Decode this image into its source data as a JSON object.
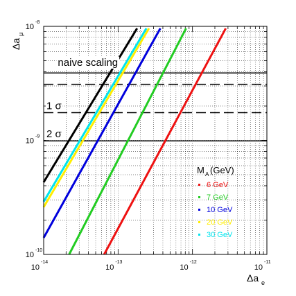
{
  "chart_data": {
    "type": "line",
    "xlabel": {
      "main": "Δa",
      "sub": "e"
    },
    "ylabel": {
      "main": "Δa",
      "sub": "μ"
    },
    "xscale": "log",
    "yscale": "log",
    "xlim": [
      1e-14,
      1e-11
    ],
    "ylim": [
      1e-10,
      1e-08
    ],
    "grid": true,
    "x_ticks": [
      {
        "base": "10",
        "exp": "-14",
        "value": 1e-14
      },
      {
        "base": "10",
        "exp": "-13",
        "value": 1e-13
      },
      {
        "base": "10",
        "exp": "-12",
        "value": 1e-12
      },
      {
        "base": "10",
        "exp": "-11",
        "value": 1e-11
      }
    ],
    "y_ticks": [
      {
        "base": "10",
        "exp": "-10",
        "value": 1e-10
      },
      {
        "base": "10",
        "exp": "-9",
        "value": 1e-09
      },
      {
        "base": "10",
        "exp": "-8",
        "value": 1e-08
      }
    ],
    "legend": {
      "title": "M",
      "title_sub": "A",
      "title_unit": "(GeV)",
      "placement": "lower-right"
    },
    "series": [
      {
        "name": "6 GeV",
        "color": "#ee1111",
        "x": [
          6.5e-14,
          2.8e-12
        ],
        "y": [
          1e-10,
          9.6e-09
        ]
      },
      {
        "name": "7 GeV",
        "color": "#22cc22",
        "x": [
          2.2e-14,
          8.2e-13
        ],
        "y": [
          1e-10,
          9.6e-09
        ]
      },
      {
        "name": "10 GeV",
        "color": "#0000dd",
        "x": [
          1e-14,
          3.7e-13
        ],
        "y": [
          1.4e-10,
          9.6e-09
        ]
      },
      {
        "name": "20 GeV",
        "color": "#ffee00",
        "x": [
          1e-14,
          2.6e-13
        ],
        "y": [
          2.6e-10,
          9.6e-09
        ]
      },
      {
        "name": "30 GeV",
        "color": "#00e5ee",
        "x": [
          1e-14,
          2.4e-13
        ],
        "y": [
          2.9e-10,
          9.6e-09
        ]
      },
      {
        "name": "naive scaling",
        "color": "#000000",
        "x": [
          1e-14,
          1.8e-13
        ],
        "y": [
          4.3e-10,
          9.6e-09
        ]
      }
    ],
    "hlines": [
      {
        "label": "",
        "y": 3.9e-09,
        "style": "solid"
      },
      {
        "label": "",
        "y": 3.1e-09,
        "style": "dashed"
      },
      {
        "label": "1 σ",
        "y": 1.75e-09,
        "style": "dashed"
      },
      {
        "label": "2 σ",
        "y": 9.9e-10,
        "style": "solid"
      }
    ],
    "annotations": [
      {
        "text": "naive scaling",
        "x": 1.55e-14,
        "y": 4.5e-09
      }
    ]
  }
}
